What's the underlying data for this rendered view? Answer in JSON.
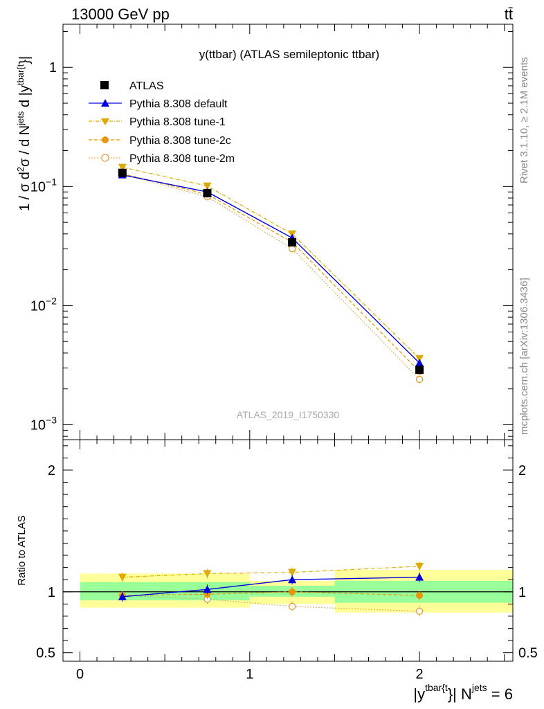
{
  "header": {
    "left": "13000 GeV pp",
    "right": "tt̄"
  },
  "side_labels": {
    "rivet": "Rivet 3.1.10, ≥ 2.1M events",
    "mcplots": "mcplots.cern.ch [arXiv:1306.3436]"
  },
  "colors": {
    "atlas": "#000000",
    "default": "#0000dd",
    "tune1": "#ddaa00",
    "tune2c": "#e8950a",
    "tune2m": "#e09a3a",
    "band_inner": "#99ff99",
    "band_outer": "#ffff99"
  },
  "chart_data": [
    {
      "type": "line",
      "panel": "main",
      "title": "y(ttbar) (ATLAS semileptonic ttbar)",
      "watermark": "ATLAS_2019_I1750330",
      "ylabel": {
        "pre": "1 / σ d",
        "sup1": "2",
        "mid1": "σ / d N",
        "sup2": "jets",
        "mid2": " d |y",
        "sup3": "tbar{t",
        "post": "}|"
      },
      "yscale": "log",
      "ylim": [
        0.00075,
        2.3
      ],
      "xlim": [
        -0.1,
        2.55
      ],
      "yticks": [
        {
          "value": 1,
          "label": "1"
        },
        {
          "value": 0.1,
          "base": "10",
          "exp": "−1"
        },
        {
          "value": 0.01,
          "base": "10",
          "exp": "−2"
        },
        {
          "value": 0.001,
          "base": "10",
          "exp": "−3"
        }
      ],
      "legend": {
        "position": "top-left",
        "entries": [
          "ATLAS",
          "Pythia 8.308 default",
          "Pythia 8.308 tune-1",
          "Pythia 8.308 tune-2c",
          "Pythia 8.308 tune-2m"
        ]
      },
      "x": [
        0.25,
        0.75,
        1.25,
        2.0
      ],
      "series": [
        {
          "name": "ATLAS",
          "key": "atlas",
          "values": [
            0.13,
            0.088,
            0.034,
            0.0029
          ]
        },
        {
          "name": "Pythia 8.308 default",
          "key": "default",
          "values": [
            0.125,
            0.09,
            0.037,
            0.0033
          ]
        },
        {
          "name": "Pythia 8.308 tune-1",
          "key": "tune1",
          "values": [
            0.145,
            0.101,
            0.04,
            0.0036
          ]
        },
        {
          "name": "Pythia 8.308 tune-2c",
          "key": "tune2c",
          "values": [
            0.128,
            0.086,
            0.034,
            0.0028
          ]
        },
        {
          "name": "Pythia 8.308 tune-2m",
          "key": "tune2m",
          "values": [
            0.127,
            0.082,
            0.03,
            0.0024
          ]
        }
      ]
    },
    {
      "type": "line",
      "panel": "ratio",
      "ylabel": "Ratio to ATLAS",
      "xlabel": {
        "pre": "|y",
        "sup1": "tbar{t",
        "mid": "}| N",
        "sup2": "jets",
        "post": " = 6"
      },
      "ylim": [
        0.43,
        2.25
      ],
      "xlim": [
        -0.1,
        2.55
      ],
      "yticks": [
        {
          "value": 2,
          "label": "2"
        },
        {
          "value": 1,
          "label": "1"
        },
        {
          "value": 0.5,
          "label": "0.5"
        }
      ],
      "xticks": [
        {
          "value": 0,
          "label": "0"
        },
        {
          "value": 1,
          "label": "1"
        },
        {
          "value": 2,
          "label": "2"
        }
      ],
      "bands": [
        {
          "x0": 0.0,
          "x1": 1.0,
          "inner": [
            0.93,
            1.08
          ],
          "outer": [
            0.87,
            1.15
          ]
        },
        {
          "x0": 1.0,
          "x1": 1.5,
          "inner": [
            0.96,
            1.05
          ],
          "outer": [
            0.9,
            1.09
          ]
        },
        {
          "x0": 1.5,
          "x1": 2.55,
          "inner": [
            0.91,
            1.09
          ],
          "outer": [
            0.83,
            1.18
          ]
        }
      ],
      "x": [
        0.25,
        0.75,
        1.25,
        2.0
      ],
      "series": [
        {
          "name": "Pythia 8.308 default",
          "key": "default",
          "values": [
            0.96,
            1.02,
            1.1,
            1.12
          ]
        },
        {
          "name": "Pythia 8.308 tune-1",
          "key": "tune1",
          "values": [
            1.12,
            1.15,
            1.16,
            1.21
          ]
        },
        {
          "name": "Pythia 8.308 tune-2c",
          "key": "tune2c",
          "values": [
            0.97,
            0.98,
            1.0,
            0.97
          ]
        },
        {
          "name": "Pythia 8.308 tune-2m",
          "key": "tune2m",
          "values": [
            0.97,
            0.94,
            0.88,
            0.84
          ]
        }
      ]
    }
  ]
}
